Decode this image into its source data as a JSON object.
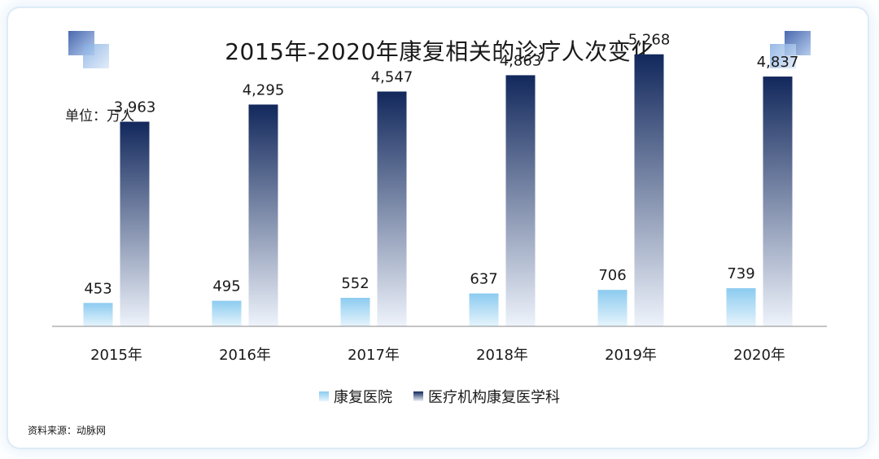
{
  "chart_data": {
    "type": "bar",
    "title": "2015年-2020年康复相关的诊疗人次变化",
    "unit_label": "单位：万人",
    "categories": [
      "2015年",
      "2016年",
      "2017年",
      "2018年",
      "2019年",
      "2020年"
    ],
    "series": [
      {
        "name": "康复医院",
        "values": [
          453,
          495,
          552,
          637,
          706,
          739
        ],
        "labels": [
          "453",
          "495",
          "552",
          "637",
          "706",
          "739"
        ],
        "color_top": "#8ccbf0",
        "color_bottom": "#e6f4fc"
      },
      {
        "name": "医疗机构康复医学科",
        "values": [
          3963,
          4295,
          4547,
          4863,
          5268,
          4837
        ],
        "labels": [
          "3,963",
          "4,295",
          "4,547",
          "4,863",
          "5,268",
          "4,837"
        ],
        "color_top": "#12285c",
        "color_bottom": "#eef3fb"
      }
    ],
    "ylim": [
      0,
      5500
    ],
    "grid": false,
    "legend_position": "bottom"
  },
  "source": "资料来源：动脉网"
}
